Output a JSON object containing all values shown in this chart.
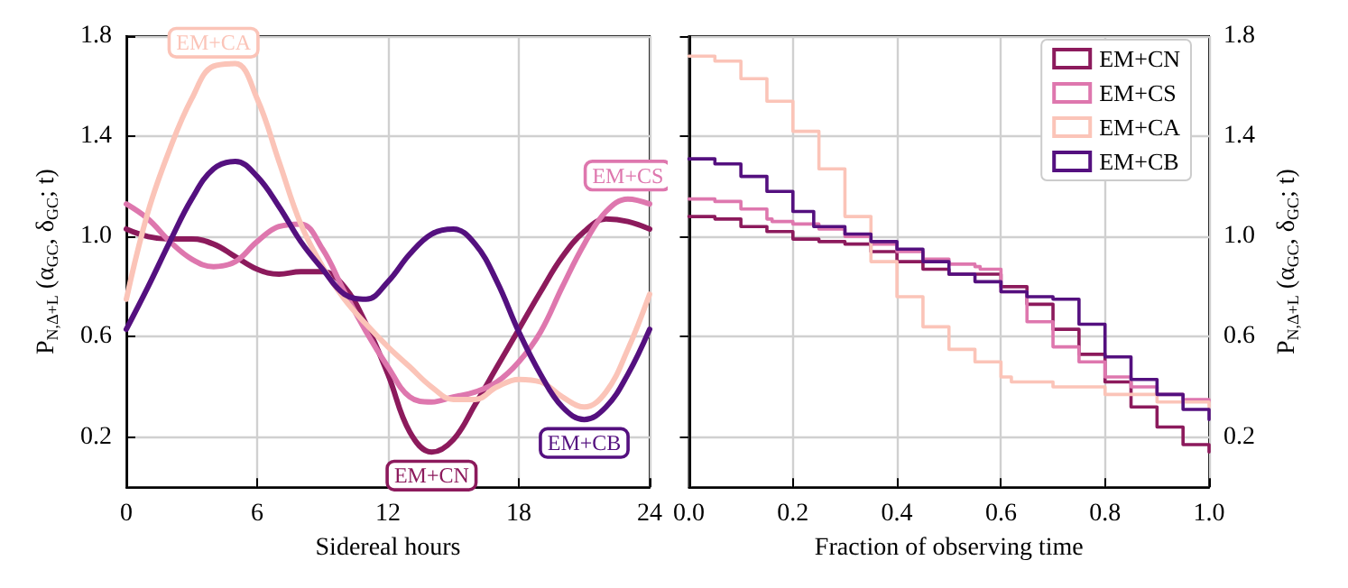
{
  "chart_data": [
    {
      "type": "line",
      "xlabel": "Sidereal hours",
      "ylabel": "P$_{N,Δ+L}$ (α$_{GC}$, δ$_{GC}$; t)",
      "x": [
        0,
        1,
        2,
        3,
        4,
        5,
        6,
        7,
        8,
        9,
        10,
        11,
        12,
        13,
        14,
        15,
        16,
        17,
        18,
        19,
        20,
        21,
        22,
        23,
        24
      ],
      "series": [
        {
          "color": "#8c1a5c",
          "values": [
            1.03,
            1.0,
            0.99,
            0.99,
            0.97,
            0.92,
            0.87,
            0.85,
            0.86,
            0.86,
            0.8,
            0.65,
            0.45,
            0.22,
            0.14,
            0.19,
            0.33,
            0.48,
            0.63,
            0.78,
            0.92,
            1.02,
            1.07,
            1.06,
            1.03
          ]
        },
        {
          "color": "#de77ae",
          "values": [
            1.13,
            1.07,
            0.98,
            0.91,
            0.88,
            0.9,
            0.98,
            1.04,
            1.05,
            0.95,
            0.78,
            0.62,
            0.48,
            0.36,
            0.34,
            0.36,
            0.38,
            0.42,
            0.5,
            0.62,
            0.8,
            0.97,
            1.1,
            1.15,
            1.13
          ]
        },
        {
          "color": "#fbc4b8",
          "values": [
            0.75,
            1.1,
            1.35,
            1.55,
            1.68,
            1.69,
            1.55,
            1.3,
            1.05,
            0.88,
            0.75,
            0.65,
            0.56,
            0.48,
            0.4,
            0.35,
            0.35,
            0.4,
            0.43,
            0.42,
            0.36,
            0.32,
            0.38,
            0.55,
            0.77
          ]
        },
        {
          "color": "#54107f",
          "values": [
            0.63,
            0.8,
            0.98,
            1.15,
            1.27,
            1.3,
            1.24,
            1.12,
            0.98,
            0.87,
            0.77,
            0.75,
            0.82,
            0.93,
            1.01,
            1.03,
            0.97,
            0.82,
            0.62,
            0.45,
            0.32,
            0.27,
            0.32,
            0.45,
            0.63
          ]
        }
      ],
      "annotations": [
        {
          "text": "EM+CN",
          "x": 14,
          "y": 0.14
        },
        {
          "text": "EM+CS",
          "x": 23,
          "y": 1.15
        },
        {
          "text": "EM+CA",
          "x": 4,
          "y": 1.68
        },
        {
          "text": "EM+CB",
          "x": 21,
          "y": 0.27
        }
      ],
      "xlim": [
        0,
        24
      ],
      "xticks": [
        0,
        6,
        12,
        18,
        24
      ],
      "ylim": [
        0,
        1.8
      ],
      "yticks": [
        0.2,
        0.6,
        {
          "value": 1.0,
          "label": "1.0"
        },
        1.4,
        1.8
      ],
      "grid": true,
      "legend": false,
      "line_style": "solid",
      "marker": "none"
    },
    {
      "type": "step",
      "xlabel": "Fraction of observing time",
      "ylabel": "P$_{N,Δ+L}$ (α$_{GC}$, δ$_{GC}$; t)",
      "series": [
        {
          "name": "EM+CN",
          "color": "#8c1a5c",
          "x": [
            0,
            0.05,
            0.1,
            0.15,
            0.2,
            0.25,
            0.3,
            0.35,
            0.4,
            0.45,
            0.5,
            0.55,
            0.6,
            0.65,
            0.7,
            0.75,
            0.8,
            0.85,
            0.9,
            0.95,
            1.0
          ],
          "values": [
            1.08,
            1.07,
            1.04,
            1.02,
            0.99,
            0.98,
            0.97,
            0.94,
            0.9,
            0.87,
            0.85,
            0.85,
            0.8,
            0.73,
            0.63,
            0.53,
            0.42,
            0.32,
            0.24,
            0.17,
            0.14
          ]
        },
        {
          "name": "EM+CS",
          "color": "#de77ae",
          "x": [
            0,
            0.05,
            0.1,
            0.15,
            0.16,
            0.2,
            0.25,
            0.3,
            0.35,
            0.4,
            0.45,
            0.5,
            0.55,
            0.56,
            0.6,
            0.65,
            0.7,
            0.75,
            0.8,
            0.85,
            0.9,
            0.95,
            1.0
          ],
          "values": [
            1.15,
            1.14,
            1.11,
            1.07,
            1.06,
            1.05,
            1.03,
            1.0,
            0.97,
            0.94,
            0.91,
            0.89,
            0.88,
            0.87,
            0.78,
            0.66,
            0.56,
            0.5,
            0.44,
            0.4,
            0.37,
            0.35,
            0.34
          ]
        },
        {
          "name": "EM+CA",
          "color": "#fbc4b8",
          "x": [
            0,
            0.05,
            0.1,
            0.15,
            0.2,
            0.25,
            0.3,
            0.35,
            0.4,
            0.45,
            0.5,
            0.55,
            0.6,
            0.62,
            0.7,
            0.8,
            0.9,
            1.0
          ],
          "values": [
            1.72,
            1.7,
            1.63,
            1.54,
            1.42,
            1.27,
            1.08,
            0.9,
            0.76,
            0.64,
            0.55,
            0.5,
            0.44,
            0.42,
            0.4,
            0.37,
            0.34,
            0.32
          ]
        },
        {
          "name": "EM+CB",
          "color": "#54107f",
          "x": [
            0,
            0.05,
            0.1,
            0.15,
            0.2,
            0.24,
            0.3,
            0.35,
            0.4,
            0.45,
            0.5,
            0.55,
            0.6,
            0.65,
            0.7,
            0.75,
            0.8,
            0.85,
            0.9,
            0.95,
            1.0
          ],
          "values": [
            1.31,
            1.29,
            1.24,
            1.18,
            1.1,
            1.04,
            1.01,
            0.98,
            0.95,
            0.9,
            0.85,
            0.82,
            0.78,
            0.76,
            0.75,
            0.65,
            0.52,
            0.43,
            0.37,
            0.31,
            0.27
          ]
        }
      ],
      "xlim": [
        0,
        1
      ],
      "xticks": [
        {
          "value": 0,
          "label": "0.0"
        },
        0.2,
        0.4,
        0.6,
        0.8,
        {
          "value": 1,
          "label": "1.0"
        }
      ],
      "ylim": [
        0,
        1.8
      ],
      "yticks": [
        0.2,
        0.6,
        {
          "value": 1.0,
          "label": "1.0"
        },
        1.4,
        1.8
      ],
      "grid": true,
      "legend": "top right",
      "line_style": "solid",
      "marker": "none"
    }
  ]
}
